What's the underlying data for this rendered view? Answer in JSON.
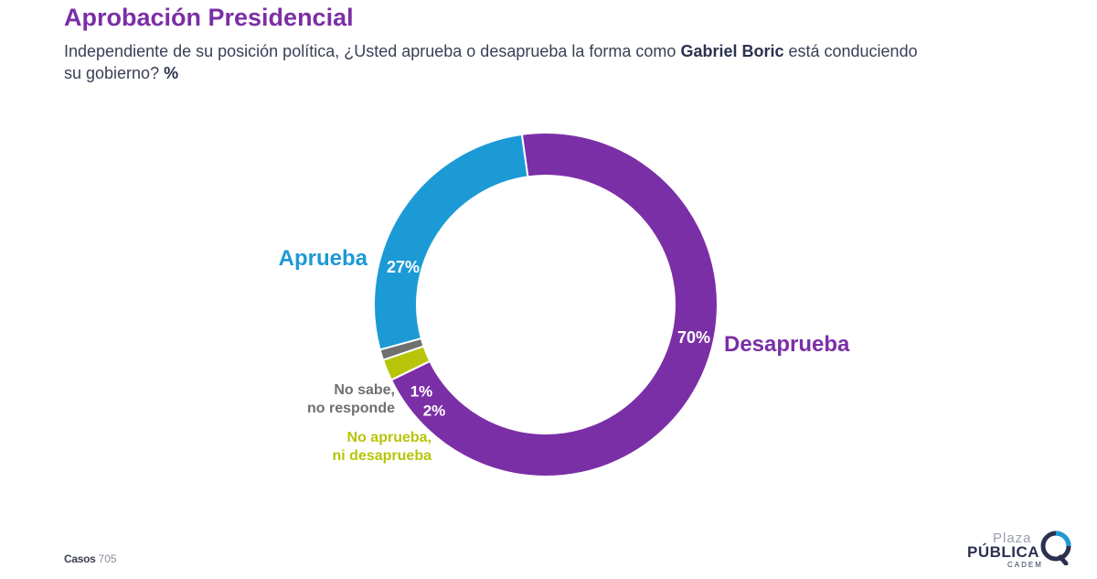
{
  "chart_data": {
    "type": "pie",
    "variant": "donut",
    "title": "Aprobación Presidencial",
    "subtitle": {
      "before": "Independiente de su posición política, ¿Usted aprueba o desaprueba la forma como ",
      "name": "Gabriel Boric",
      "after": " está conduciendo su gobierno? ",
      "unit": "%"
    },
    "slices": [
      {
        "key": "desaprueba",
        "label": "Desaprueba",
        "value": 70,
        "value_label": "70%",
        "color": "#7b2fa6"
      },
      {
        "key": "no-aprueba-ni-desaprueba",
        "label": "No aprueba,\nni desaprueba",
        "value": 2,
        "value_label": "2%",
        "color": "#b8c40a"
      },
      {
        "key": "no-sabe",
        "label": "No sabe,\nno responde",
        "value": 1,
        "value_label": "1%",
        "color": "#6f6f6f"
      },
      {
        "key": "aprueba",
        "label": "Aprueba",
        "value": 27,
        "value_label": "27%",
        "color": "#1c9ad6"
      }
    ]
  },
  "footer": {
    "casos_label": "Casos",
    "casos_value": "705"
  },
  "logo": {
    "line1": "Plaza",
    "line2": "PÚBLICA",
    "line3": "CADEM"
  }
}
